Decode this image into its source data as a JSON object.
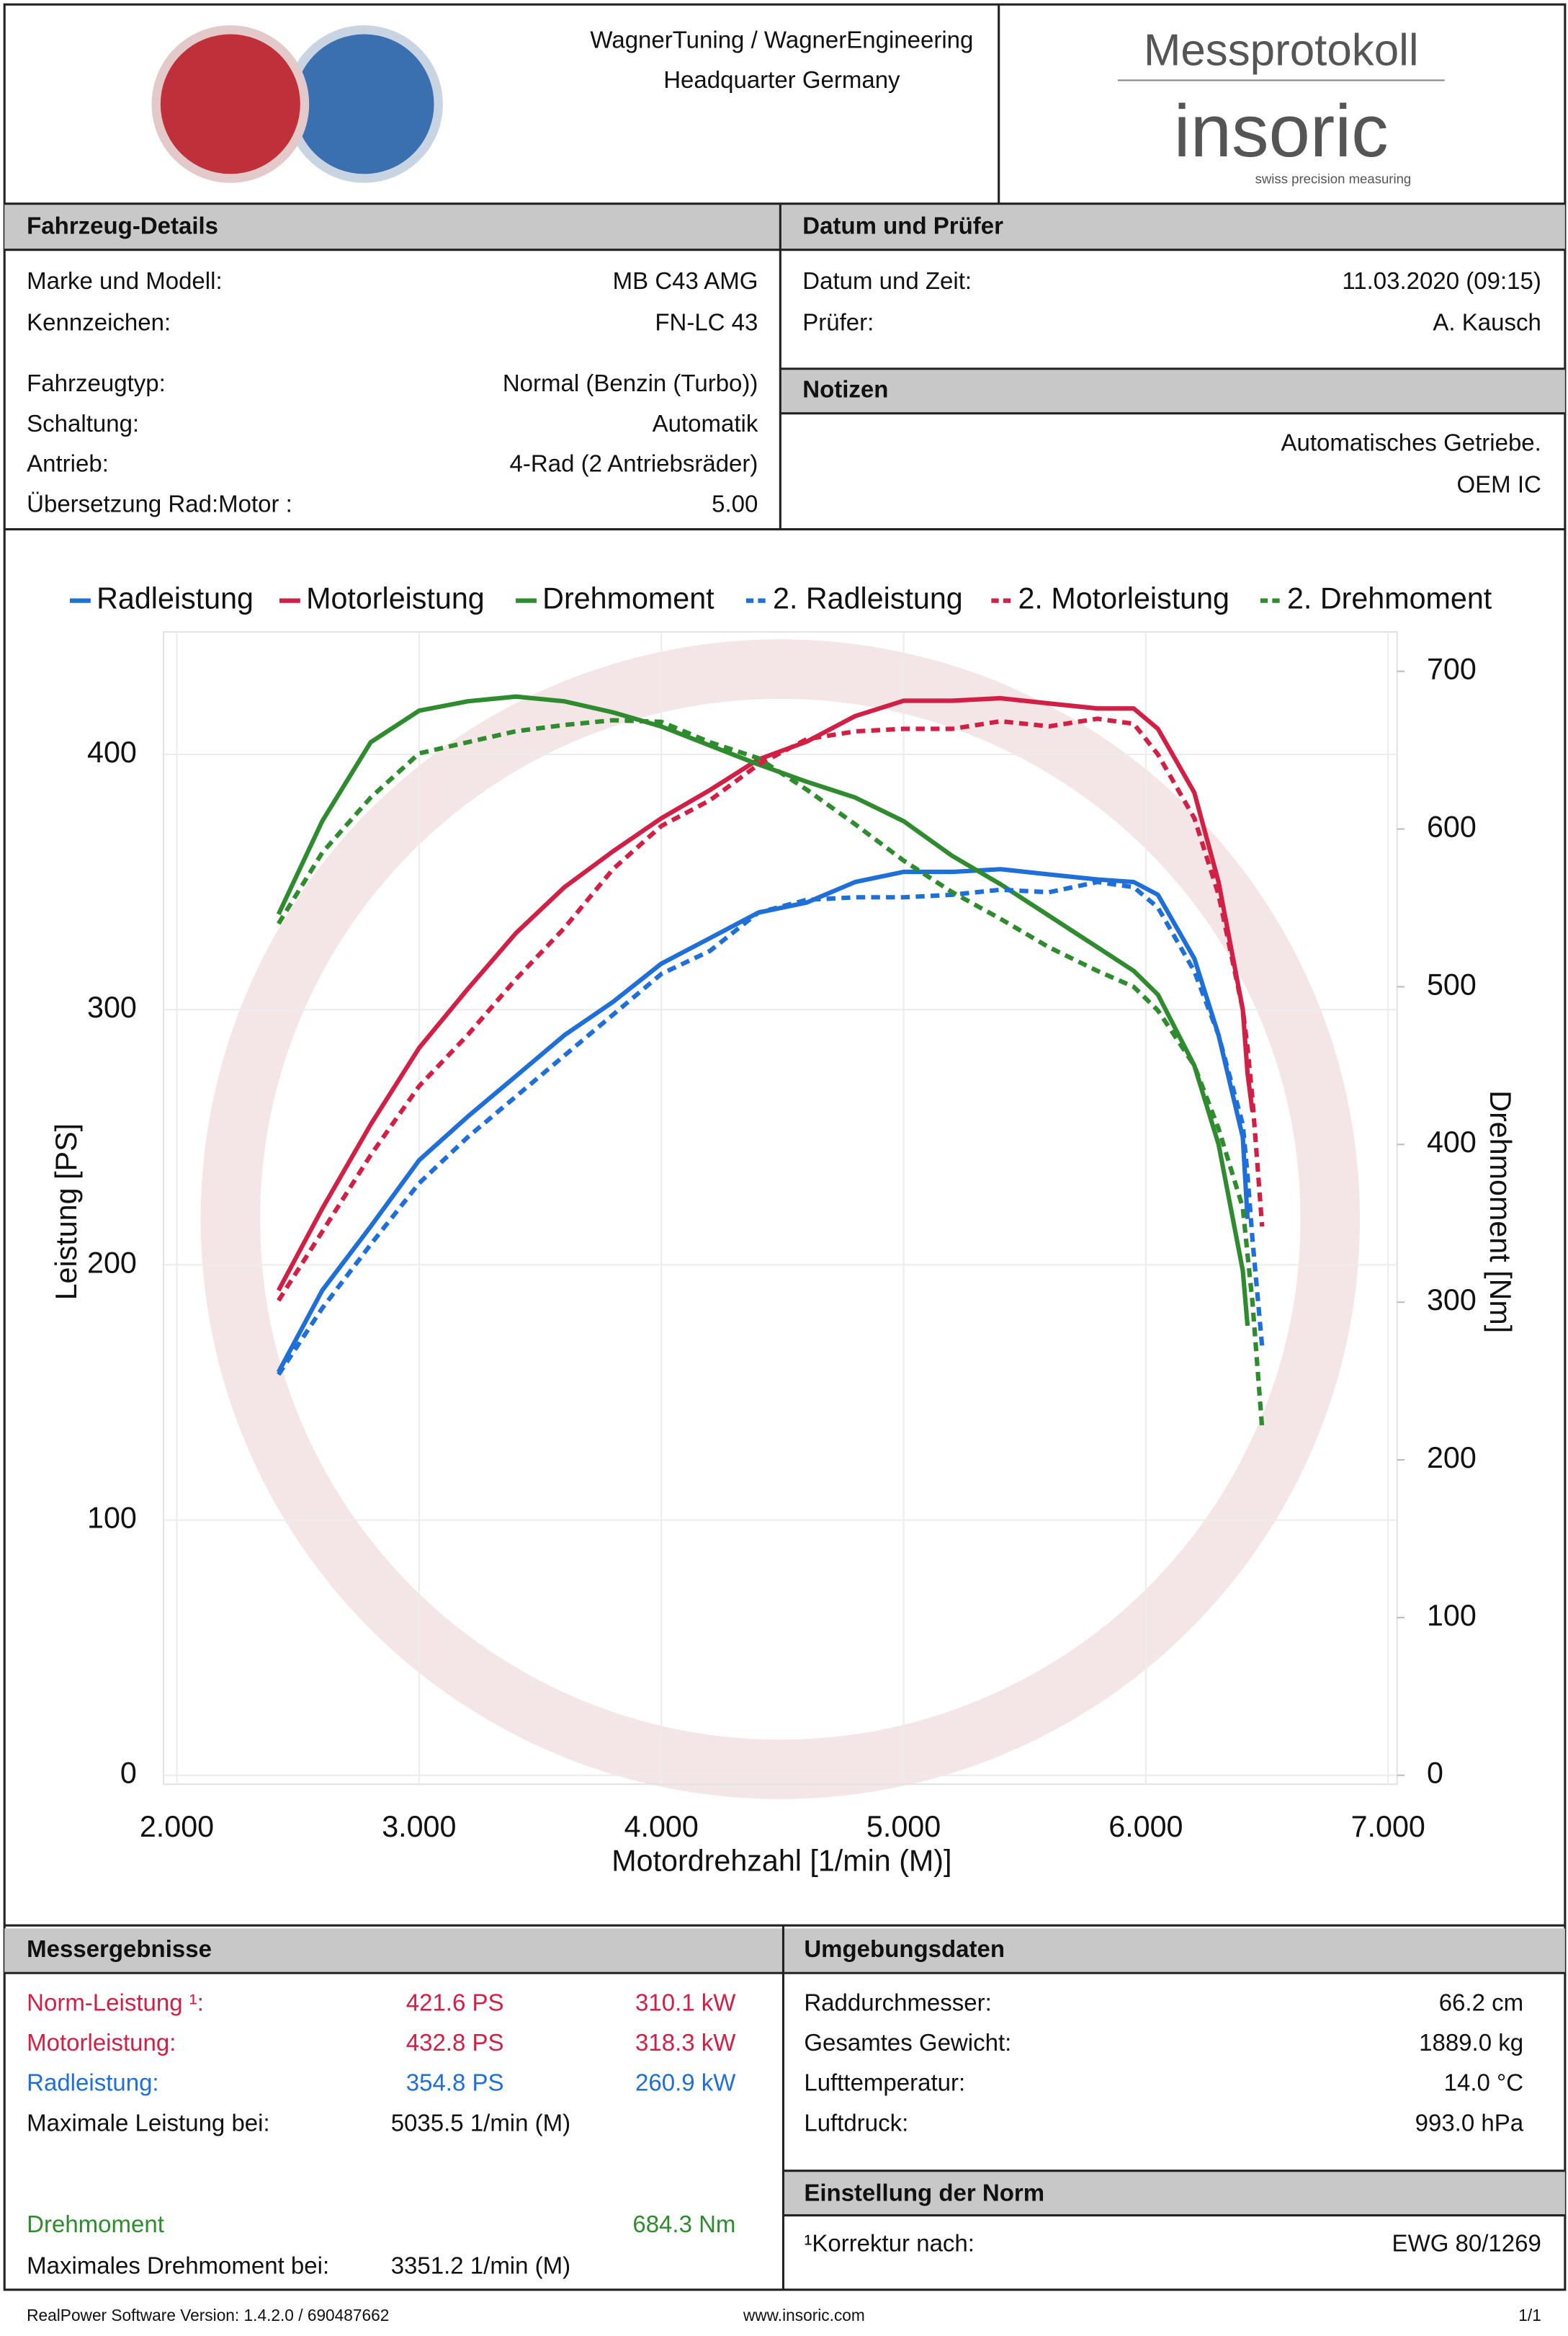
{
  "header": {
    "company": "WagnerTuning / WagnerEngineering",
    "location": "Headquarter Germany",
    "title": "Messprotokoll",
    "brand": "insoric",
    "tagline": "swiss precision measuring"
  },
  "vehicle": {
    "title": "Fahrzeug-Details",
    "rows": [
      [
        "Marke und Modell:",
        "MB C43 AMG"
      ],
      [
        "Kennzeichen:",
        "FN-LC 43"
      ],
      [
        "Fahrzeugtyp:",
        "Normal (Benzin (Turbo))"
      ],
      [
        "Schaltung:",
        "Automatik"
      ],
      [
        "Antrieb:",
        "4-Rad (2 Antriebsräder)"
      ],
      [
        "Übersetzung Rad:Motor :",
        "5.00"
      ]
    ]
  },
  "inspection": {
    "title": "Datum und Prüfer",
    "rows": [
      [
        "Datum und Zeit:",
        "11.03.2020 (09:15)"
      ],
      [
        "Prüfer:",
        "A. Kausch"
      ]
    ]
  },
  "notes": {
    "title": "Notizen",
    "lines": [
      "Automatisches Getriebe.",
      "OEM IC"
    ]
  },
  "chart_data": {
    "type": "line",
    "xlabel": "Motordrehzahl [1/min (M)]",
    "ylabel": "Leistung [PS]",
    "y2label": "Drehmoment [Nm]",
    "grid": true,
    "x": [
      2420,
      2600,
      2800,
      3000,
      3200,
      3400,
      3600,
      3800,
      4000,
      4200,
      4400,
      4600,
      4800,
      5000,
      5200,
      5400,
      5600,
      5800,
      5950,
      6050,
      6200,
      6300,
      6400,
      6420,
      6440,
      6480
    ],
    "xlim": [
      1945,
      7037
    ],
    "xticks": [
      {
        "value": 2000,
        "label": "2.000"
      },
      {
        "value": 3000,
        "label": "3.000"
      },
      {
        "value": 4000,
        "label": "4.000"
      },
      {
        "value": 5000,
        "label": "5.000"
      },
      {
        "value": 6000,
        "label": "6.000"
      },
      {
        "value": 7000,
        "label": "7.000"
      }
    ],
    "ylim": [
      0,
      448
    ],
    "yticks": [
      0,
      100,
      200,
      300,
      400
    ],
    "y2lim": [
      0,
      725
    ],
    "y2ticks": [
      0,
      100,
      200,
      300,
      400,
      500,
      600,
      700
    ],
    "series": [
      {
        "name": "Radleistung",
        "color": "#1f6fd8",
        "dashed": false,
        "values": [
          158,
          190,
          215,
          241,
          258,
          274,
          290,
          303,
          318,
          328,
          338,
          342,
          350,
          354,
          354,
          355,
          353,
          351,
          350,
          345,
          320,
          290,
          250,
          218,
          null,
          null
        ]
      },
      {
        "name": "Motorleistung",
        "color": "#d11f45",
        "dashed": false,
        "values": [
          190,
          222,
          255,
          285,
          308,
          330,
          348,
          362,
          375,
          386,
          398,
          405,
          415,
          421,
          421,
          422,
          420,
          418,
          418,
          410,
          385,
          350,
          300,
          275,
          260,
          null
        ]
      },
      {
        "name": "Drehmoment",
        "color": "#2e8b2e",
        "dashed": false,
        "axis": "y2",
        "values": [
          546,
          605,
          655,
          675,
          681,
          684,
          681,
          674,
          665,
          653,
          641,
          630,
          620,
          605,
          583,
          565,
          545,
          525,
          510,
          495,
          450,
          400,
          320,
          285,
          null,
          null
        ]
      },
      {
        "name": "2. Radleistung",
        "color": "#1f6fd8",
        "dashed": true,
        "values": [
          157,
          183,
          208,
          232,
          250,
          266,
          282,
          298,
          314,
          323,
          338,
          343,
          344,
          344,
          345,
          347,
          346,
          350,
          348,
          340,
          315,
          290,
          255,
          235,
          210,
          168
        ]
      },
      {
        "name": "2. Motorleistung",
        "color": "#d11f45",
        "dashed": true,
        "values": [
          186,
          213,
          243,
          270,
          290,
          312,
          332,
          355,
          372,
          382,
          396,
          406,
          409,
          410,
          410,
          413,
          411,
          414,
          412,
          400,
          375,
          345,
          300,
          285,
          265,
          215
        ]
      },
      {
        "name": "2. Drehmoment",
        "color": "#2e8b2e",
        "dashed": true,
        "axis": "y2",
        "values": [
          540,
          585,
          620,
          648,
          655,
          662,
          666,
          669,
          668,
          655,
          645,
          625,
          603,
          580,
          560,
          543,
          525,
          510,
          500,
          485,
          450,
          410,
          360,
          330,
          300,
          220
        ]
      }
    ]
  },
  "results": {
    "title": "Messergebnisse",
    "rows": [
      {
        "label": "Norm-Leistung ¹:",
        "ps": "421.6 PS",
        "kw": "310.1 kW",
        "color": "#d11f45"
      },
      {
        "label": "Motorleistung:",
        "ps": "432.8 PS",
        "kw": "318.3 kW",
        "color": "#d11f45"
      },
      {
        "label": "Radleistung:",
        "ps": "354.8 PS",
        "kw": "260.9 kW",
        "color": "#1f6fd8"
      }
    ],
    "max_power": {
      "label": "Maximale Leistung bei:",
      "value": "5035.5 1/min (M)"
    },
    "torque": {
      "label": "Drehmoment",
      "value": "684.3 Nm",
      "color": "#2e8b2e"
    },
    "max_torque": {
      "label": "Maximales Drehmoment bei:",
      "value": "3351.2 1/min (M)"
    }
  },
  "environment": {
    "title": "Umgebungsdaten",
    "rows": [
      [
        "Raddurchmesser:",
        "66.2 cm"
      ],
      [
        "Gesamtes Gewicht:",
        "1889.0 kg"
      ],
      [
        "Lufttemperatur:",
        "14.0 °C"
      ],
      [
        "Luftdruck:",
        "993.0 hPa"
      ]
    ]
  },
  "norm": {
    "title": "Einstellung der Norm",
    "rows": [
      [
        "¹Korrektur nach:",
        "EWG 80/1269"
      ]
    ]
  },
  "footer": {
    "version": "RealPower Software Version: 1.4.2.0 / 690487662",
    "url": "www.insoric.com",
    "page": "1/1"
  }
}
